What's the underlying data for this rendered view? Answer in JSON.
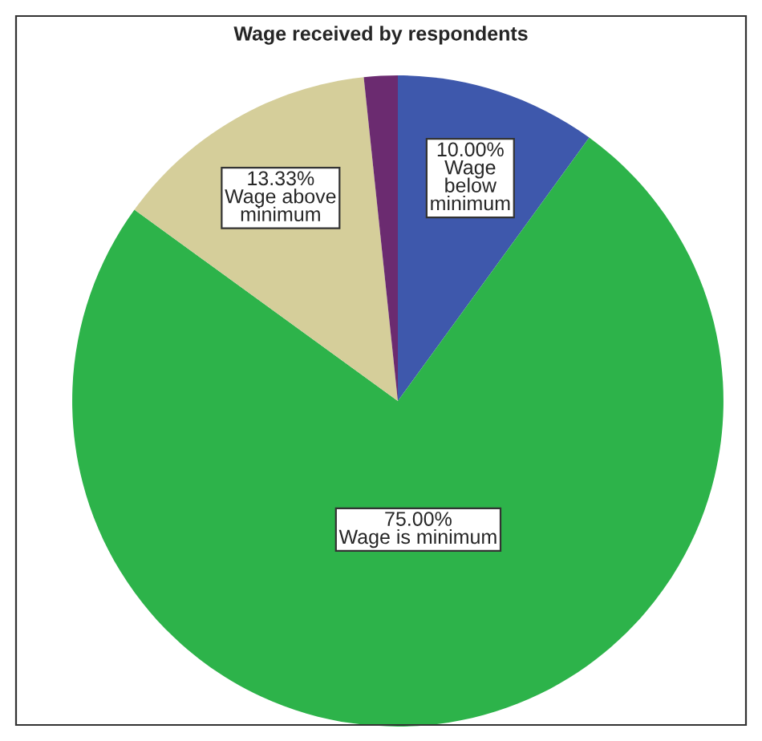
{
  "chart_data": {
    "type": "pie",
    "title": "Wage received by respondents",
    "categories": [
      "Wage\nbelow\nminimum",
      "Wage is minimum",
      "Wage above\nminimum",
      null
    ],
    "values": [
      10.0,
      75.0,
      13.33,
      1.67
    ],
    "value_labels": [
      "10.00%",
      "75.00%",
      "13.33%",
      null
    ],
    "colors": [
      "#3e58ac",
      "#2db34a",
      "#d5ce9a",
      "#6b2b70"
    ]
  }
}
